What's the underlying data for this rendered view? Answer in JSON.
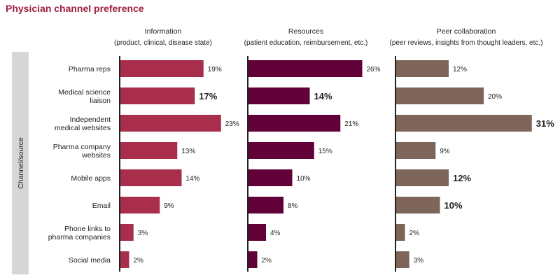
{
  "title": "Physician channel preference",
  "side_label": "Channel/source",
  "colors": {
    "information": "#a82e4c",
    "resources": "#620038",
    "peer": "#7d6659",
    "side_band": "#d6d6d6",
    "axis": "#222222"
  },
  "chart_data": {
    "type": "bar",
    "orientation": "horizontal",
    "ylabel": "Channel/source",
    "categories": [
      "Pharma reps",
      "Medical science liaison",
      "Independent medical websites",
      "Pharma company websites",
      "Mobile apps",
      "Email",
      "Phone links to pharma companies",
      "Social media"
    ],
    "category_lines": [
      [
        "Pharma reps"
      ],
      [
        "Medical science",
        "liaison"
      ],
      [
        "Independent",
        "medical websites"
      ],
      [
        "Pharma company",
        "websites"
      ],
      [
        "Mobile apps"
      ],
      [
        "Email"
      ],
      [
        "Phone links to",
        "pharma companies"
      ],
      [
        "Social media"
      ]
    ],
    "series": [
      {
        "name": "Information",
        "subtitle": "(product, clinical, disease state)",
        "values": [
          19,
          17,
          23,
          13,
          14,
          9,
          3,
          2
        ],
        "labels": [
          "19%",
          "17%",
          "23%",
          "13%",
          "14%",
          "9%",
          "3%",
          "2%"
        ],
        "emphasized": [
          false,
          true,
          false,
          false,
          false,
          false,
          false,
          false
        ]
      },
      {
        "name": "Resources",
        "subtitle": "(patient education, reimbursement, etc.)",
        "values": [
          26,
          14,
          21,
          15,
          10,
          8,
          4,
          2
        ],
        "labels": [
          "26%",
          "14%",
          "21%",
          "15%",
          "10%",
          "8%",
          "4%",
          "2%"
        ],
        "emphasized": [
          false,
          true,
          false,
          false,
          false,
          false,
          false,
          false
        ]
      },
      {
        "name": "Peer collaboration",
        "subtitle": "(peer reviews, insights from thought leaders, etc.)",
        "values": [
          12,
          20,
          31,
          9,
          12,
          10,
          2,
          3
        ],
        "labels": [
          "12%",
          "20%",
          "31%",
          "9%",
          "12%",
          "10%",
          "2%",
          "3%"
        ],
        "emphasized": [
          false,
          false,
          true,
          false,
          true,
          true,
          false,
          false
        ]
      }
    ]
  }
}
